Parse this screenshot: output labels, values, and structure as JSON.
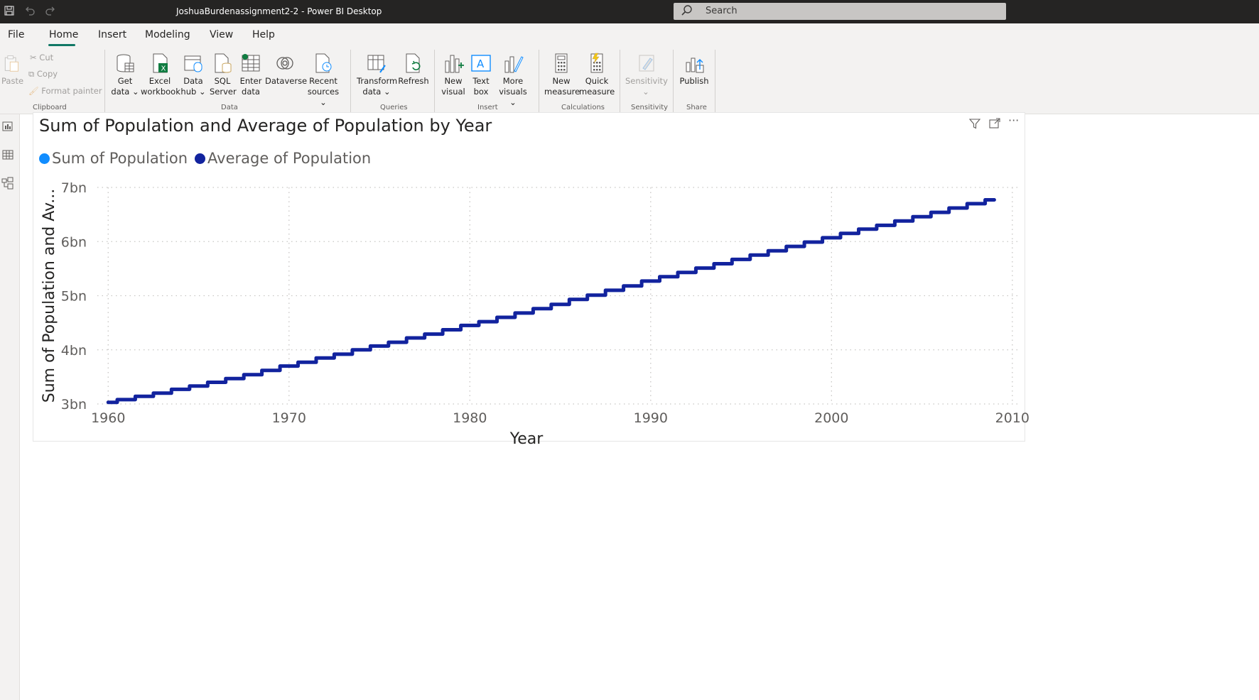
{
  "titlebar": {
    "title": "JoshuaBurdenassignment2-2 - Power BI Desktop",
    "search_placeholder": "Search"
  },
  "menu": [
    "File",
    "Home",
    "Insert",
    "Modeling",
    "View",
    "Help"
  ],
  "ribbon": {
    "clipboard": {
      "paste": "Paste",
      "cut": "Cut",
      "copy": "Copy",
      "format_painter": "Format painter",
      "label": "Clipboard"
    },
    "data": {
      "get_data": [
        "Get",
        "data"
      ],
      "excel": [
        "Excel",
        "workbook"
      ],
      "data_hub": [
        "Data",
        "hub"
      ],
      "sql": [
        "SQL",
        "Server"
      ],
      "enter": [
        "Enter",
        "data"
      ],
      "dataverse": "Dataverse",
      "recent": [
        "Recent",
        "sources"
      ],
      "label": "Data"
    },
    "queries": {
      "transform": [
        "Transform",
        "data"
      ],
      "refresh": "Refresh",
      "label": "Queries"
    },
    "insert": {
      "new_visual": [
        "New",
        "visual"
      ],
      "text_box": [
        "Text",
        "box"
      ],
      "more_visuals": [
        "More",
        "visuals"
      ],
      "label": "Insert"
    },
    "calculations": {
      "new_measure": [
        "New",
        "measure"
      ],
      "quick_measure": [
        "Quick",
        "measure"
      ],
      "label": "Calculations"
    },
    "sensitivity": {
      "button": "Sensitivity",
      "label": "Sensitivity"
    },
    "share": {
      "publish": "Publish",
      "label": "Share"
    }
  },
  "chart_data": {
    "type": "line",
    "title": "Sum of Population and Average of Population by Year",
    "xlabel": "Year",
    "ylabel": "Sum of Population and Av...",
    "xlim": [
      1959.4,
      2010.4
    ],
    "ylim": [
      3,
      7
    ],
    "x_ticks": [
      1960,
      1970,
      1980,
      1990,
      2000,
      2010
    ],
    "x_tick_labels": [
      "1960",
      "1970",
      "1980",
      "1990",
      "2000",
      "2010"
    ],
    "y_ticks": [
      3,
      4,
      5,
      6,
      7
    ],
    "y_tick_labels": [
      "3bn",
      "4bn",
      "5bn",
      "6bn",
      "7bn"
    ],
    "grid": true,
    "legend_position": "top-left",
    "line_shape": "step",
    "x": [
      1960,
      1961,
      1962,
      1963,
      1964,
      1965,
      1966,
      1967,
      1968,
      1969,
      1970,
      1971,
      1972,
      1973,
      1974,
      1975,
      1976,
      1977,
      1978,
      1979,
      1980,
      1981,
      1982,
      1983,
      1984,
      1985,
      1986,
      1987,
      1988,
      1989,
      1990,
      1991,
      1992,
      1993,
      1994,
      1995,
      1996,
      1997,
      1998,
      1999,
      2000,
      2001,
      2002,
      2003,
      2004,
      2005,
      2006,
      2007,
      2008,
      2009
    ],
    "series": [
      {
        "name": "Sum of Population",
        "color": "#118DFF",
        "values": [
          3.03,
          3.08,
          3.14,
          3.2,
          3.27,
          3.33,
          3.4,
          3.47,
          3.54,
          3.62,
          3.7,
          3.77,
          3.85,
          3.92,
          4.0,
          4.07,
          4.14,
          4.22,
          4.29,
          4.37,
          4.45,
          4.52,
          4.6,
          4.68,
          4.76,
          4.84,
          4.93,
          5.01,
          5.1,
          5.18,
          5.27,
          5.35,
          5.43,
          5.51,
          5.59,
          5.67,
          5.75,
          5.83,
          5.91,
          5.99,
          6.07,
          6.15,
          6.23,
          6.3,
          6.38,
          6.46,
          6.54,
          6.62,
          6.7,
          6.77
        ]
      },
      {
        "name": "Average of Population",
        "color": "#12239E",
        "values": [
          3.03,
          3.08,
          3.14,
          3.2,
          3.27,
          3.33,
          3.4,
          3.47,
          3.54,
          3.62,
          3.7,
          3.77,
          3.85,
          3.92,
          4.0,
          4.07,
          4.14,
          4.22,
          4.29,
          4.37,
          4.45,
          4.52,
          4.6,
          4.68,
          4.76,
          4.84,
          4.93,
          5.01,
          5.1,
          5.18,
          5.27,
          5.35,
          5.43,
          5.51,
          5.59,
          5.67,
          5.75,
          5.83,
          5.91,
          5.99,
          6.07,
          6.15,
          6.23,
          6.3,
          6.38,
          6.46,
          6.54,
          6.62,
          6.7,
          6.77
        ]
      }
    ]
  }
}
